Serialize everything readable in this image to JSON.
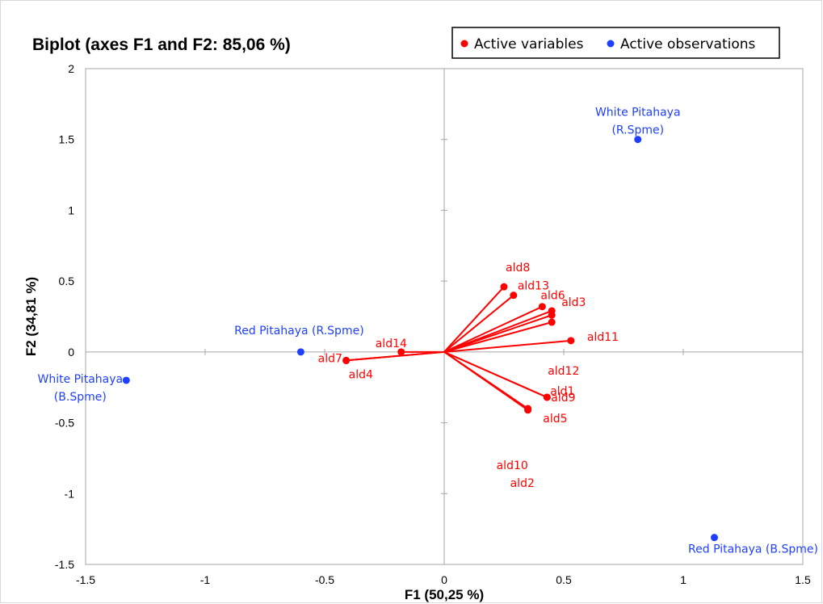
{
  "chart_data": {
    "type": "scatter",
    "title": "Biplot (axes F1 and F2: 85,06 %)",
    "xlabel": "F1 (50,25 %)",
    "ylabel": "F2 (34,81 %)",
    "xlim": [
      -1.5,
      1.5
    ],
    "ylim": [
      -1.5,
      2
    ],
    "x_ticks": [
      "-1.5",
      "-1",
      "-0.5",
      "0",
      "0.5",
      "1",
      "1.5"
    ],
    "y_ticks": [
      "-1.5",
      "-1",
      "-0.5",
      "0",
      "0.5",
      "1",
      "1.5",
      "2"
    ],
    "grid": false,
    "legend_position": "top-right",
    "colors": {
      "variables": "#ff0000",
      "observations": "#1f3fff"
    },
    "series": [
      {
        "name": "Active variables",
        "kind": "vectors",
        "points": [
          {
            "label": "ald1",
            "x": 0.45,
            "y": 0.21
          },
          {
            "label": "ald2",
            "x": 0.35,
            "y": -0.41
          },
          {
            "label": "ald3",
            "x": 0.45,
            "y": 0.29
          },
          {
            "label": "ald4",
            "x": -0.41,
            "y": -0.06
          },
          {
            "label": "ald5",
            "x": 0.43,
            "y": -0.32
          },
          {
            "label": "ald6",
            "x": 0.41,
            "y": 0.32
          },
          {
            "label": "ald7",
            "x": -0.41,
            "y": -0.06
          },
          {
            "label": "ald8",
            "x": 0.25,
            "y": 0.46
          },
          {
            "label": "ald9",
            "x": 0.43,
            "y": -0.32
          },
          {
            "label": "ald10",
            "x": 0.35,
            "y": -0.4
          },
          {
            "label": "ald11",
            "x": 0.53,
            "y": 0.08
          },
          {
            "label": "ald12",
            "x": 0.45,
            "y": 0.26
          },
          {
            "label": "ald13",
            "x": 0.29,
            "y": 0.4
          },
          {
            "label": "ald14",
            "x": -0.18,
            "y": 0.0
          }
        ]
      },
      {
        "name": "Active observations",
        "kind": "points",
        "points": [
          {
            "label": [
              "White Pitahaya",
              "(R.Spme)"
            ],
            "x": 0.81,
            "y": 1.5
          },
          {
            "label": [
              "Red Pitahaya (R.Spme)"
            ],
            "x": -0.6,
            "y": 0.0
          },
          {
            "label": [
              "White Pitahaya",
              "(B.Spme)"
            ],
            "x": -1.33,
            "y": -0.2
          },
          {
            "label": [
              "Red Pitahaya (B.Spme)"
            ],
            "x": 1.13,
            "y": -1.31
          }
        ]
      }
    ]
  }
}
